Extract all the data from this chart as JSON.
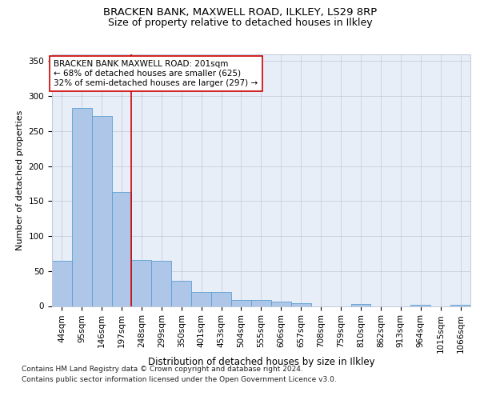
{
  "title1": "BRACKEN BANK, MAXWELL ROAD, ILKLEY, LS29 8RP",
  "title2": "Size of property relative to detached houses in Ilkley",
  "xlabel": "Distribution of detached houses by size in Ilkley",
  "ylabel": "Number of detached properties",
  "categories": [
    "44sqm",
    "95sqm",
    "146sqm",
    "197sqm",
    "248sqm",
    "299sqm",
    "350sqm",
    "401sqm",
    "453sqm",
    "504sqm",
    "555sqm",
    "606sqm",
    "657sqm",
    "708sqm",
    "759sqm",
    "810sqm",
    "862sqm",
    "913sqm",
    "964sqm",
    "1015sqm",
    "1066sqm"
  ],
  "values": [
    65,
    283,
    271,
    163,
    66,
    65,
    36,
    20,
    20,
    9,
    9,
    6,
    4,
    0,
    0,
    3,
    0,
    0,
    2,
    0,
    2
  ],
  "bar_color": "#aec6e8",
  "bar_edge_color": "#5a9fd4",
  "vline_x": 3.5,
  "vline_color": "#cc0000",
  "annotation_text": "BRACKEN BANK MAXWELL ROAD: 201sqm\n← 68% of detached houses are smaller (625)\n32% of semi-detached houses are larger (297) →",
  "annotation_box_color": "#ffffff",
  "annotation_box_edge": "#cc0000",
  "annotation_fontsize": 7.5,
  "title1_fontsize": 9.5,
  "title2_fontsize": 9,
  "xlabel_fontsize": 8.5,
  "ylabel_fontsize": 8,
  "tick_fontsize": 7.5,
  "ylim": [
    0,
    360
  ],
  "yticks": [
    0,
    50,
    100,
    150,
    200,
    250,
    300,
    350
  ],
  "footer1": "Contains HM Land Registry data © Crown copyright and database right 2024.",
  "footer2": "Contains public sector information licensed under the Open Government Licence v3.0.",
  "plot_background": "#e8eef8"
}
